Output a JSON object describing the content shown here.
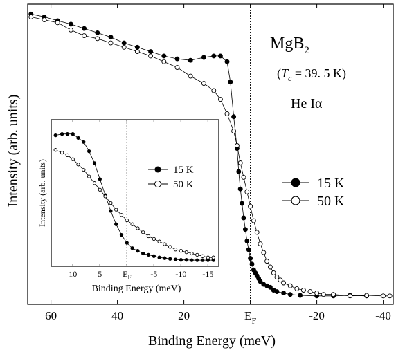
{
  "chart_data": [
    {
      "type": "scatter",
      "xlabel": "Binding Energy (meV)",
      "ylabel": "Intensity (arb. units)",
      "xlim": [
        67,
        -43
      ],
      "ylim": [
        0,
        1.0
      ],
      "x_reversed": true,
      "x_ticks": [
        {
          "value": 60,
          "label": "60"
        },
        {
          "value": 40,
          "label": "40"
        },
        {
          "value": 20,
          "label": "20"
        },
        {
          "value": 0,
          "label": "E"
        },
        {
          "value": -20,
          "label": "-20"
        },
        {
          "value": -40,
          "label": "-40"
        }
      ],
      "fermi_tick_subscript": "F",
      "reference_line_x": 0,
      "annotations": {
        "compound_main": "MgB",
        "compound_sub": "2",
        "tc_open": "(",
        "tc_symbol": "T",
        "tc_sub": "c",
        "tc_value": " = 39. 5 K)",
        "source": "He Iα"
      },
      "grid": false,
      "legend_position": "right",
      "series": [
        {
          "name": "15 K",
          "marker": "filled-circle",
          "color": "#000000",
          "x": [
            66,
            62,
            58,
            54,
            50,
            46,
            42,
            38,
            34,
            30,
            26,
            22,
            18,
            14,
            11,
            9,
            7,
            6,
            5,
            4,
            3.5,
            3,
            2.5,
            2,
            1.5,
            1,
            0.5,
            0,
            -0.5,
            -1,
            -1.5,
            -2,
            -2.5,
            -3,
            -4,
            -5,
            -6,
            -7,
            -8,
            -10,
            -12,
            -15,
            -20,
            -25,
            -30,
            -35
          ],
          "values": [
            0.985,
            0.975,
            0.962,
            0.95,
            0.935,
            0.92,
            0.905,
            0.885,
            0.87,
            0.855,
            0.84,
            0.83,
            0.825,
            0.835,
            0.84,
            0.84,
            0.82,
            0.75,
            0.63,
            0.52,
            0.44,
            0.38,
            0.33,
            0.28,
            0.24,
            0.2,
            0.17,
            0.14,
            0.12,
            0.1,
            0.09,
            0.08,
            0.07,
            0.06,
            0.05,
            0.045,
            0.04,
            0.03,
            0.025,
            0.02,
            0.015,
            0.012,
            0.01,
            0.01,
            0.012,
            0.01
          ]
        },
        {
          "name": "50 K",
          "marker": "open-circle",
          "color": "#000000",
          "x": [
            66,
            62,
            58,
            54,
            50,
            46,
            42,
            38,
            34,
            30,
            26,
            22,
            18,
            14,
            11,
            9,
            7,
            5,
            4,
            3,
            2,
            1,
            0,
            -1,
            -2,
            -3,
            -4,
            -5,
            -6,
            -7,
            -8,
            -9,
            -10,
            -12,
            -14,
            -16,
            -18,
            -20,
            -22,
            -25,
            -30,
            -35,
            -40,
            -42
          ],
          "values": [
            0.975,
            0.965,
            0.955,
            0.93,
            0.91,
            0.9,
            0.885,
            0.87,
            0.855,
            0.84,
            0.82,
            0.8,
            0.77,
            0.745,
            0.72,
            0.69,
            0.64,
            0.58,
            0.53,
            0.47,
            0.42,
            0.37,
            0.32,
            0.27,
            0.23,
            0.19,
            0.16,
            0.13,
            0.11,
            0.09,
            0.075,
            0.065,
            0.055,
            0.045,
            0.035,
            0.03,
            0.025,
            0.02,
            0.015,
            0.015,
            0.01,
            0.012,
            0.01,
            0.01
          ]
        }
      ]
    },
    {
      "type": "scatter",
      "role": "inset",
      "xlabel": "Binding Energy (meV)",
      "ylabel": "Intensity (arb. units)",
      "xlim": [
        14,
        -17
      ],
      "ylim": [
        0,
        1.0
      ],
      "x_reversed": true,
      "x_ticks": [
        {
          "value": 10,
          "label": "10"
        },
        {
          "value": 5,
          "label": "5"
        },
        {
          "value": 0,
          "label": "E"
        },
        {
          "value": -5,
          "label": "-5"
        },
        {
          "value": -10,
          "label": "-10"
        },
        {
          "value": -15,
          "label": "-15"
        }
      ],
      "fermi_tick_subscript": "F",
      "reference_line_x": 0,
      "grid": false,
      "legend_position": "top-right",
      "series": [
        {
          "name": "15 K",
          "marker": "filled-circle",
          "color": "#000000",
          "x": [
            13.2,
            12,
            11,
            10,
            9,
            8,
            7,
            6,
            5,
            4,
            3,
            2,
            1,
            0,
            -1,
            -2,
            -3,
            -4,
            -5,
            -6,
            -7,
            -8,
            -9,
            -10,
            -11,
            -12,
            -13,
            -14,
            -15,
            -16
          ],
          "values": [
            0.95,
            0.96,
            0.96,
            0.96,
            0.93,
            0.9,
            0.83,
            0.74,
            0.62,
            0.5,
            0.38,
            0.28,
            0.2,
            0.14,
            0.1,
            0.08,
            0.06,
            0.05,
            0.04,
            0.03,
            0.025,
            0.02,
            0.015,
            0.012,
            0.012,
            0.01,
            0.01,
            0.01,
            0.01,
            0.01
          ]
        },
        {
          "name": "50 K",
          "marker": "open-circle",
          "color": "#000000",
          "x": [
            13.2,
            12,
            11,
            10,
            9,
            8,
            7,
            6,
            5,
            4,
            3,
            2,
            1,
            0,
            -1,
            -2,
            -3,
            -4,
            -5,
            -6,
            -7,
            -8,
            -9,
            -10,
            -11,
            -12,
            -13,
            -14,
            -15,
            -16
          ],
          "values": [
            0.84,
            0.82,
            0.8,
            0.77,
            0.73,
            0.69,
            0.64,
            0.59,
            0.54,
            0.49,
            0.44,
            0.39,
            0.35,
            0.31,
            0.28,
            0.25,
            0.22,
            0.19,
            0.17,
            0.15,
            0.13,
            0.11,
            0.09,
            0.08,
            0.07,
            0.06,
            0.05,
            0.04,
            0.03,
            0.03
          ]
        }
      ]
    }
  ]
}
